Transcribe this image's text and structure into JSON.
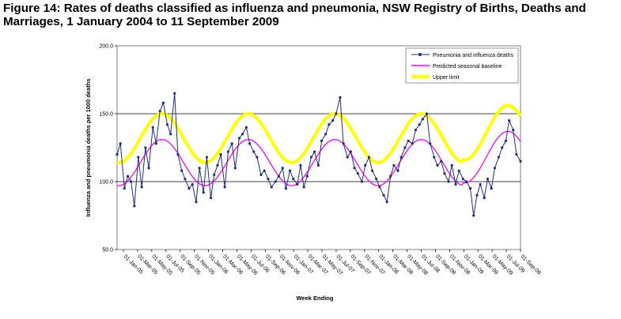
{
  "figure": {
    "title": "Figure 14: Rates of deaths classified as influenza and pneumonia, NSW Registry of Births, Deaths and Marriages, 1 January 2004 to 11 September 2009"
  },
  "chart_data": {
    "type": "line",
    "xlabel": "Week Ending",
    "ylabel": "Influenza and pneumonia deaths per 1000 deaths",
    "ylim": [
      50,
      200
    ],
    "yticks": [
      "50.0",
      "100.0",
      "150.0",
      "200.0"
    ],
    "grid": "horizontal lines at 100 and 150",
    "legend_position": "top-right inside plot",
    "x_date_range": [
      "2005-01-01",
      "2009-09-01"
    ],
    "x_tick_labels": [
      "01-Jan-05",
      "01-Mar-05",
      "01-May-05",
      "01-Jul-05",
      "01-Sep-05",
      "01-Nov-05",
      "01-Jan-06",
      "01-Mar-06",
      "01-May-06",
      "01-Jul-06",
      "01-Sep-06",
      "01-Nov-06",
      "01-Jan-07",
      "01-Mar-07",
      "01-May-07",
      "01-Jul-07",
      "01-Sep-07",
      "01-Nov-07",
      "01-Jan-08",
      "01-Mar-08",
      "01-May-08",
      "01-Jul-08",
      "01-Sep-08",
      "01-Nov-08",
      "01-Jan-09",
      "01-Mar-09",
      "01-May-09",
      "01-Jul-09",
      "01-Sep-09"
    ],
    "series": [
      {
        "name": "Pneumonia and influenza deaths",
        "color": "#1f2d7a",
        "marker": "circle",
        "dates": [
          "2005-01-01",
          "2005-01-15",
          "2005-02-01",
          "2005-02-15",
          "2005-03-01",
          "2005-03-15",
          "2005-04-01",
          "2005-04-15",
          "2005-05-01",
          "2005-05-15",
          "2005-06-01",
          "2005-06-15",
          "2005-07-01",
          "2005-07-15",
          "2005-08-01",
          "2005-08-15",
          "2005-09-01",
          "2005-09-15",
          "2005-10-01",
          "2005-10-15",
          "2005-11-01",
          "2005-11-15",
          "2005-12-01",
          "2005-12-15",
          "2006-01-01",
          "2006-01-15",
          "2006-02-01",
          "2006-02-15",
          "2006-03-01",
          "2006-03-15",
          "2006-04-01",
          "2006-04-15",
          "2006-05-01",
          "2006-05-15",
          "2006-06-01",
          "2006-06-15",
          "2006-07-01",
          "2006-07-15",
          "2006-08-01",
          "2006-08-15",
          "2006-09-01",
          "2006-09-15",
          "2006-10-01",
          "2006-10-15",
          "2006-11-01",
          "2006-11-15",
          "2006-12-01",
          "2006-12-15",
          "2007-01-01",
          "2007-01-15",
          "2007-02-01",
          "2007-02-15",
          "2007-03-01",
          "2007-03-15",
          "2007-04-01",
          "2007-04-15",
          "2007-05-01",
          "2007-05-15",
          "2007-06-01",
          "2007-06-15",
          "2007-07-01",
          "2007-07-15",
          "2007-08-01",
          "2007-08-15",
          "2007-09-01",
          "2007-09-15",
          "2007-10-01",
          "2007-10-15",
          "2007-11-01",
          "2007-11-15",
          "2007-12-01",
          "2007-12-15",
          "2008-01-01",
          "2008-01-15",
          "2008-02-01",
          "2008-02-15",
          "2008-03-01",
          "2008-03-15",
          "2008-04-01",
          "2008-04-15",
          "2008-05-01",
          "2008-05-15",
          "2008-06-01",
          "2008-06-15",
          "2008-07-01",
          "2008-07-15",
          "2008-08-01",
          "2008-08-15",
          "2008-09-01",
          "2008-09-15",
          "2008-10-01",
          "2008-10-15",
          "2008-11-01",
          "2008-11-15",
          "2008-12-01",
          "2008-12-15",
          "2009-01-01",
          "2009-01-15",
          "2009-02-01",
          "2009-02-15",
          "2009-03-01",
          "2009-03-15",
          "2009-04-01",
          "2009-04-15",
          "2009-05-01",
          "2009-05-15",
          "2009-06-01",
          "2009-06-15",
          "2009-07-01",
          "2009-07-15",
          "2009-08-01",
          "2009-08-15",
          "2009-09-01"
        ],
        "values": [
          120,
          128,
          95,
          104,
          100,
          82,
          118,
          96,
          125,
          110,
          140,
          128,
          152,
          158,
          142,
          135,
          165,
          120,
          108,
          102,
          95,
          98,
          85,
          110,
          92,
          118,
          88,
          105,
          112,
          120,
          96,
          122,
          128,
          110,
          132,
          135,
          140,
          128,
          122,
          118,
          105,
          108,
          102,
          96,
          100,
          104,
          110,
          95,
          108,
          102,
          98,
          112,
          96,
          104,
          118,
          122,
          112,
          130,
          135,
          142,
          145,
          150,
          162,
          128,
          118,
          122,
          110,
          106,
          100,
          112,
          118,
          108,
          102,
          96,
          90,
          85,
          104,
          112,
          108,
          118,
          125,
          130,
          128,
          138,
          142,
          146,
          150,
          128,
          118,
          112,
          115,
          106,
          100,
          112,
          98,
          108,
          102,
          100,
          95,
          75,
          90,
          98,
          88,
          102,
          95,
          110,
          118,
          125,
          130,
          145,
          138,
          120,
          115
        ]
      },
      {
        "name": "Predicted seasonal baseline",
        "color": "#ff00ff",
        "dates": [
          "2005-01-01",
          "2009-09-01"
        ],
        "model": "seasonal sine, trough ~Jan, peak ~Jul",
        "mean": 114,
        "amplitude": 17,
        "end_values_2009": [
          138
        ]
      },
      {
        "name": "Upper limit",
        "color": "#ffff00",
        "dates": [
          "2005-01-01",
          "2009-09-01"
        ],
        "model": "seasonal sine, trough ~Jan, peak ~Jul",
        "mean": 132,
        "amplitude": 18,
        "end_values_2009": [
          155
        ]
      }
    ]
  }
}
